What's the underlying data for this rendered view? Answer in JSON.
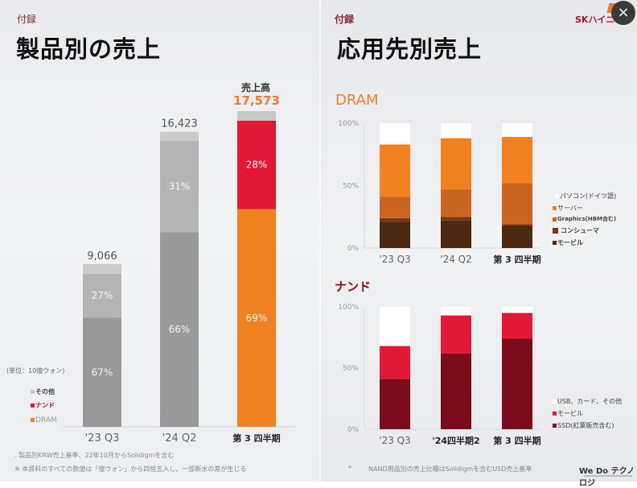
{
  "left": {
    "appendix": "付録",
    "title": "製品別の売上",
    "unit_note": "(単位：10億ウォン)",
    "highlight_label": "売上高",
    "footnotes": [
      ". 製品別KRW売上基準、22年10月からSolidigmを含む",
      "※ 本資料のすべての数値は「億ウォン」から四捨五入し、一部断水の差が生じる"
    ]
  },
  "right": {
    "appendix": "付録",
    "title": "応用先別売上",
    "brand": "SKハイニ",
    "close_icon": "×",
    "footnote_marker": "*",
    "footnote": "NAND用品別の売上比種はSolidigmを含むUSD売上基準",
    "slogan": "We Do テクノロジ"
  },
  "colors": {
    "dram": "#f28122",
    "nand": "#e21837",
    "other": "#c8c8c8",
    "gray_dark": "#999999",
    "gray_light": "#b4b4b4",
    "server": "#f28122",
    "graphics": "#c9651f",
    "consumer": "#7a3a12",
    "mobile_dram": "#4a2a10",
    "usb_other": "#ffffff",
    "mobile_nand": "#e21837",
    "ssd": "#7a0c1c"
  },
  "chart_data": [
    {
      "type": "bar",
      "title": "製品別の売上",
      "ylabel": "(単位：10億ウォン)",
      "categories": [
        "'23 Q3",
        "'24 Q2",
        "第 3 四半期"
      ],
      "totals": [
        9066,
        16423,
        17573
      ],
      "total_labels": [
        "9,066",
        "16,423",
        "17,573"
      ],
      "legend": [
        "その他",
        "ナンド",
        "DRAM"
      ],
      "series": [
        {
          "name": "DRAM",
          "share_pct": [
            67,
            66,
            69
          ],
          "labels": [
            "67%",
            "66%",
            "69%"
          ]
        },
        {
          "name": "ナンド",
          "share_pct": [
            27,
            31,
            28
          ],
          "labels": [
            "27%",
            "31%",
            "28%"
          ]
        },
        {
          "name": "その他",
          "share_pct": [
            6,
            3,
            3
          ],
          "labels": [
            "",
            "",
            ""
          ]
        }
      ],
      "ylim": [
        0,
        17573
      ]
    },
    {
      "type": "bar",
      "title": "DRAM",
      "categories": [
        "'23 Q3",
        "'24 Q2",
        "第 3 四半期"
      ],
      "y_ticks": [
        "0%",
        "50%",
        "100%"
      ],
      "ylim": [
        0,
        100
      ],
      "legend": [
        "パソコン(ドイツ語)",
        "サーバー",
        "Graphics(HBM含む)",
        "コンシューマ",
        "モービル"
      ],
      "series": [
        {
          "name": "モービル",
          "values": [
            21,
            22,
            18
          ]
        },
        {
          "name": "コンシューマ",
          "values": [
            3,
            3,
            1
          ]
        },
        {
          "name": "Graphics(HBM含む)",
          "values": [
            17,
            22,
            33
          ]
        },
        {
          "name": "サーバー",
          "values": [
            42,
            41,
            37
          ]
        },
        {
          "name": "パソコン(ドイツ語)",
          "values": [
            17,
            12,
            11
          ]
        }
      ]
    },
    {
      "type": "bar",
      "title": "ナンド",
      "categories": [
        "'23 Q3",
        "'24四半期2",
        "第 3 四半期"
      ],
      "y_ticks": [
        "0%",
        "50%",
        "100%"
      ],
      "ylim": [
        0,
        100
      ],
      "legend": [
        "USB、カード、その他",
        "モービル",
        "SSD(紅葉販売含む)"
      ],
      "series": [
        {
          "name": "SSD(紅葉販売含む)",
          "values": [
            41,
            62,
            74
          ]
        },
        {
          "name": "モービル",
          "values": [
            27,
            31,
            21
          ]
        },
        {
          "name": "USB、カード、その他",
          "values": [
            32,
            7,
            5
          ]
        }
      ]
    }
  ]
}
